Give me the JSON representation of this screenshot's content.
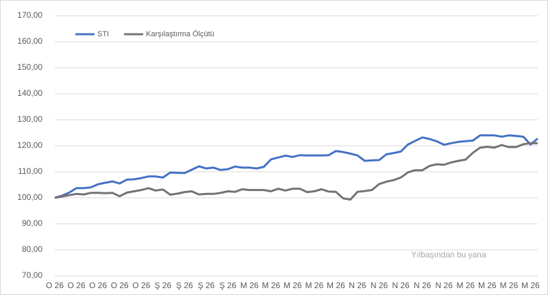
{
  "chart_data": {
    "type": "line",
    "annotation": "Yılbaşından bu yana",
    "categories": [
      "O 26",
      null,
      null,
      "O 26",
      null,
      null,
      "O 26",
      null,
      null,
      "O 26",
      null,
      null,
      "O 26",
      null,
      null,
      "Ş 26",
      null,
      null,
      "Ş 26",
      null,
      null,
      "Ş 26",
      null,
      null,
      "Ş 26",
      null,
      null,
      "M 26",
      null,
      null,
      "M 26",
      null,
      null,
      "M 26",
      null,
      null,
      "M 26",
      null,
      null,
      "M 26",
      null,
      null,
      "N 26",
      null,
      null,
      "N 26",
      null,
      null,
      "N 26",
      null,
      null,
      "N 26",
      null,
      null,
      "N 26",
      null,
      null,
      "M 26",
      null,
      null,
      "M 26",
      null,
      null,
      "M 26",
      null,
      null,
      "M 26",
      null
    ],
    "series": [
      {
        "name": "STI",
        "color": "#4472c4",
        "values": [
          100,
          100.8,
          102,
          103.7,
          103.7,
          104,
          105.2,
          105.8,
          106.3,
          105.5,
          107,
          107.1,
          107.6,
          108.2,
          108.2,
          107.8,
          109.7,
          109.6,
          109.5,
          110.8,
          112.1,
          111.3,
          111.6,
          110.7,
          111,
          112,
          111.6,
          111.6,
          111.3,
          111.9,
          114.8,
          115.5,
          116.2,
          115.7,
          116.4,
          116.3,
          116.3,
          116.3,
          116.4,
          118,
          117.6,
          117,
          116.3,
          114.2,
          114.4,
          114.5,
          116.7,
          117.2,
          117.8,
          120.5,
          121.9,
          123.2,
          122.6,
          121.7,
          120.4,
          121,
          121.5,
          121.8,
          122,
          124,
          124,
          124,
          123.5,
          124,
          123.8,
          123.5,
          120.5,
          122.8
        ]
      },
      {
        "name": "Karşılaştırma Ölçütü",
        "color": "#767171",
        "values": [
          100,
          100.5,
          101,
          101.5,
          101.3,
          101.9,
          101.9,
          101.8,
          101.9,
          100.6,
          102,
          102.5,
          103,
          103.7,
          102.8,
          103.2,
          101.2,
          101.6,
          102.2,
          102.5,
          101.3,
          101.5,
          101.5,
          101.9,
          102.5,
          102.3,
          103.3,
          103,
          103,
          103,
          102.5,
          103.5,
          102.8,
          103.5,
          103.5,
          102.2,
          102.5,
          103.3,
          102.4,
          102.3,
          99.8,
          99.3,
          102.3,
          102.6,
          103,
          105.3,
          106.2,
          106.8,
          107.8,
          109.8,
          110.6,
          110.6,
          112.3,
          112.9,
          112.7,
          113.6,
          114.2,
          114.7,
          117.3,
          119.3,
          119.6,
          119.3,
          120.3,
          119.5,
          119.5,
          120.6,
          121,
          121
        ]
      }
    ],
    "ylim": [
      70,
      170
    ],
    "yticks": [
      {
        "value": 70,
        "label": "70,00"
      },
      {
        "value": 80,
        "label": "80,00"
      },
      {
        "value": 90,
        "label": "90,00"
      },
      {
        "value": 100,
        "label": "100,00"
      },
      {
        "value": 110,
        "label": "110,00"
      },
      {
        "value": 120,
        "label": "120,00"
      },
      {
        "value": 130,
        "label": "130,00"
      },
      {
        "value": 140,
        "label": "140,00"
      },
      {
        "value": 150,
        "label": "150,00"
      },
      {
        "value": 160,
        "label": "160,00"
      },
      {
        "value": 170,
        "label": "170,00"
      }
    ],
    "grid": true,
    "legend": "top-left"
  }
}
